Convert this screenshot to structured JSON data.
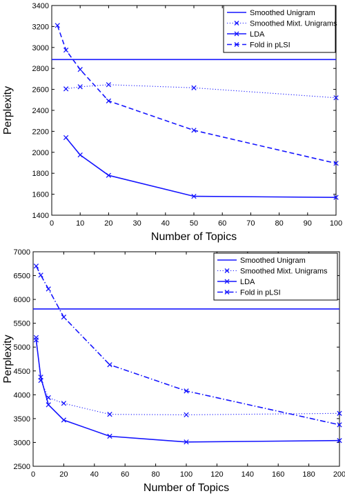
{
  "colors": {
    "series": "#1414ff",
    "axis": "#000000",
    "background": "#ffffff"
  },
  "chart_data": [
    {
      "type": "line",
      "xlabel": "Number of Topics",
      "ylabel": "Perplexity",
      "xlim": [
        0,
        100
      ],
      "ylim": [
        1400,
        3400
      ],
      "xticks": [
        0,
        10,
        20,
        30,
        40,
        50,
        60,
        70,
        80,
        90,
        100
      ],
      "yticks": [
        1400,
        1600,
        1800,
        2000,
        2200,
        2400,
        2600,
        2800,
        3000,
        3200,
        3400
      ],
      "legend_position": "top-right",
      "series": [
        {
          "name": "Smoothed Unigram",
          "style": "solid",
          "marker": "none",
          "x": [
            0,
            100
          ],
          "y": [
            2885,
            2885
          ]
        },
        {
          "name": "Smoothed Mixt. Unigrams",
          "style": "dotted",
          "marker": "x",
          "x": [
            5,
            10,
            20,
            50,
            100
          ],
          "y": [
            2605,
            2625,
            2645,
            2615,
            2520
          ]
        },
        {
          "name": "LDA",
          "style": "solid",
          "marker": "x",
          "x": [
            5,
            10,
            20,
            50,
            100
          ],
          "y": [
            2140,
            1975,
            1780,
            1580,
            1570
          ]
        },
        {
          "name": "Fold in pLSI",
          "style": "dashed",
          "marker": "x",
          "x": [
            2,
            5,
            10,
            20,
            50,
            100
          ],
          "y": [
            3210,
            2975,
            2790,
            2490,
            2210,
            1895
          ]
        }
      ]
    },
    {
      "type": "line",
      "xlabel": "Number of Topics",
      "ylabel": "Perplexity",
      "xlim": [
        0,
        200
      ],
      "ylim": [
        2500,
        7000
      ],
      "xticks": [
        0,
        20,
        40,
        60,
        80,
        100,
        120,
        140,
        160,
        180,
        200
      ],
      "yticks": [
        2500,
        3000,
        3500,
        4000,
        4500,
        5000,
        5500,
        6000,
        6500,
        7000
      ],
      "legend_position": "top-right",
      "series": [
        {
          "name": "Smoothed Unigram",
          "style": "solid",
          "marker": "none",
          "x": [
            0,
            200
          ],
          "y": [
            5800,
            5800
          ]
        },
        {
          "name": "Smoothed Mixt. Unigrams",
          "style": "dotted",
          "marker": "x",
          "x": [
            2,
            5,
            10,
            20,
            50,
            100,
            200
          ],
          "y": [
            5200,
            4300,
            3940,
            3820,
            3590,
            3580,
            3610
          ]
        },
        {
          "name": "LDA",
          "style": "solid",
          "marker": "x",
          "x": [
            2,
            5,
            10,
            20,
            50,
            100,
            200
          ],
          "y": [
            5150,
            4370,
            3790,
            3470,
            3130,
            3010,
            3040
          ]
        },
        {
          "name": "Fold in pLSI",
          "style": "dashdot",
          "marker": "x",
          "x": [
            2,
            5,
            10,
            20,
            50,
            100,
            200
          ],
          "y": [
            6700,
            6510,
            6220,
            5630,
            4630,
            4080,
            3370
          ]
        }
      ]
    }
  ]
}
